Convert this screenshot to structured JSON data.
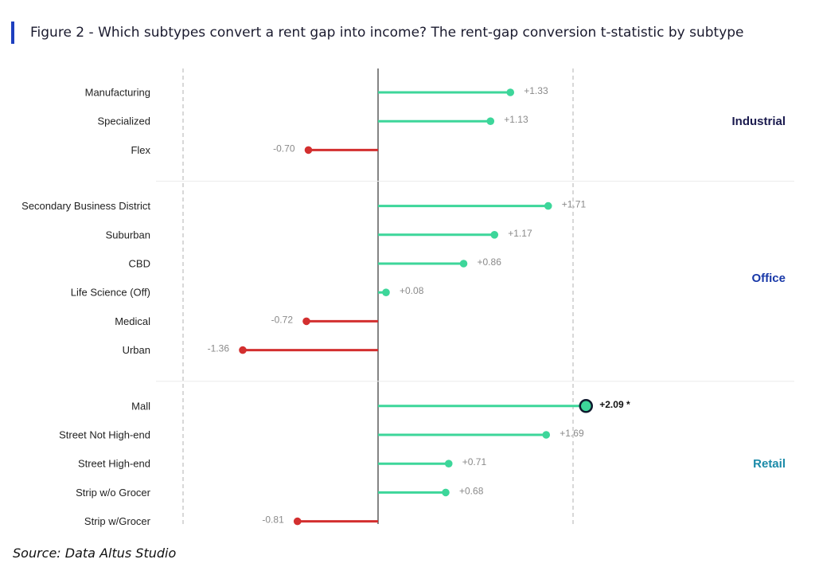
{
  "title": "Figure 2 - Which subtypes convert a rent gap into income? The rent-gap conversion t-statistic by subtype",
  "source": "Source: Data Altus Studio",
  "colors": {
    "positive": "#3dd69a",
    "negative": "#d32f2f",
    "industrial": "#1a1a4e",
    "office": "#1838a8",
    "retail": "#1a8aa8",
    "highlight_outline": "#0f1a2e"
  },
  "chart_data": {
    "type": "lollipop",
    "xlim": [
      -2.2,
      2.2
    ],
    "reference_lines": [
      -1.96,
      0,
      1.96
    ],
    "grid": false,
    "groups": [
      {
        "name": "Industrial",
        "items": [
          {
            "label": "Manufacturing",
            "value": 1.33,
            "value_label": "+1.33"
          },
          {
            "label": "Specialized",
            "value": 1.13,
            "value_label": "+1.13"
          },
          {
            "label": "Flex",
            "value": -0.7,
            "value_label": "-0.70"
          }
        ]
      },
      {
        "name": "Office",
        "items": [
          {
            "label": "Secondary Business District",
            "value": 1.71,
            "value_label": "+1.71"
          },
          {
            "label": "Suburban",
            "value": 1.17,
            "value_label": "+1.17"
          },
          {
            "label": "CBD",
            "value": 0.86,
            "value_label": "+0.86"
          },
          {
            "label": "Life Science (Off)",
            "value": 0.08,
            "value_label": "+0.08"
          },
          {
            "label": "Medical",
            "value": -0.72,
            "value_label": "-0.72"
          },
          {
            "label": "Urban",
            "value": -1.36,
            "value_label": "-1.36"
          }
        ]
      },
      {
        "name": "Retail",
        "items": [
          {
            "label": "Mall",
            "value": 2.09,
            "value_label": "+2.09 *",
            "significant": true
          },
          {
            "label": "Street Not High-end",
            "value": 1.69,
            "value_label": "+1.69"
          },
          {
            "label": "Street High-end",
            "value": 0.71,
            "value_label": "+0.71"
          },
          {
            "label": "Strip w/o Grocer",
            "value": 0.68,
            "value_label": "+0.68"
          },
          {
            "label": "Strip w/Grocer",
            "value": -0.81,
            "value_label": "-0.81"
          }
        ]
      }
    ]
  }
}
